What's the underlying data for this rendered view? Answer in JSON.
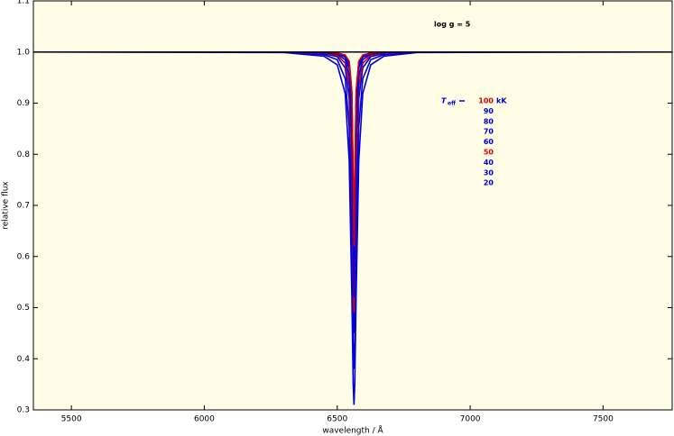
{
  "chart_data": {
    "type": "line",
    "annotation": "log g = 5",
    "legend_title": "T",
    "legend_title_sub": "eff",
    "legend_unit": "kK",
    "x_label": "wavelength / Å",
    "y_label": "relative flux",
    "x": [
      5357,
      6300,
      6450,
      6500,
      6530,
      6545,
      6555,
      6560,
      6563,
      6566,
      6571,
      6581,
      6596,
      6626,
      6676,
      6800,
      7760
    ],
    "series": [
      {
        "name": "100",
        "color": "#dd0000",
        "values": [
          1,
          1,
          1,
          0.998,
          0.994,
          0.982,
          0.924,
          0.757,
          0.62,
          0.757,
          0.924,
          0.982,
          0.994,
          0.998,
          1,
          1,
          1
        ]
      },
      {
        "name": "90",
        "color": "#0000dd",
        "values": [
          1,
          1,
          1,
          0.998,
          0.994,
          0.981,
          0.92,
          0.744,
          0.6,
          0.744,
          0.92,
          0.981,
          0.994,
          0.998,
          1,
          1,
          1
        ]
      },
      {
        "name": "80",
        "color": "#0000dd",
        "values": [
          1,
          1,
          1,
          0.998,
          0.992,
          0.975,
          0.899,
          0.709,
          0.58,
          0.709,
          0.899,
          0.975,
          0.992,
          0.998,
          1,
          1,
          1
        ]
      },
      {
        "name": "70",
        "color": "#0000dd",
        "values": [
          1,
          1,
          0.999,
          0.997,
          0.99,
          0.968,
          0.874,
          0.669,
          0.55,
          0.669,
          0.874,
          0.968,
          0.99,
          0.997,
          0.999,
          1,
          1
        ]
      },
      {
        "name": "60",
        "color": "#0000dd",
        "values": [
          1,
          1,
          0.999,
          0.996,
          0.985,
          0.952,
          0.827,
          0.616,
          0.52,
          0.616,
          0.827,
          0.952,
          0.985,
          0.996,
          0.999,
          1,
          1
        ]
      },
      {
        "name": "50",
        "color": "#dd0000",
        "values": [
          1,
          1,
          0.998,
          0.994,
          0.978,
          0.933,
          0.779,
          0.569,
          0.49,
          0.569,
          0.779,
          0.933,
          0.978,
          0.994,
          0.998,
          1,
          1
        ]
      },
      {
        "name": "40",
        "color": "#0000dd",
        "values": [
          1,
          1,
          0.997,
          0.991,
          0.969,
          0.909,
          0.725,
          0.518,
          0.45,
          0.518,
          0.725,
          0.909,
          0.969,
          0.991,
          0.997,
          1,
          1
        ]
      },
      {
        "name": "30",
        "color": "#0000dd",
        "values": [
          1,
          1,
          0.995,
          0.985,
          0.948,
          0.854,
          0.622,
          0.431,
          0.38,
          0.431,
          0.622,
          0.854,
          0.948,
          0.985,
          0.995,
          1,
          1
        ]
      },
      {
        "name": "20",
        "color": "#0000dd",
        "values": [
          1,
          0.999,
          0.992,
          0.975,
          0.919,
          0.788,
          0.522,
          0.351,
          0.31,
          0.351,
          0.522,
          0.788,
          0.919,
          0.975,
          0.992,
          0.999,
          1
        ]
      }
    ],
    "reference_line": 1,
    "xlim": [
      5357,
      7760
    ],
    "xticks": [
      5500,
      6000,
      6500,
      7000,
      7500
    ],
    "ylim": [
      0.3,
      1.1
    ],
    "yticks": [
      0.3,
      0.4,
      0.5,
      0.6,
      0.7,
      0.8,
      0.9,
      {
        "value": 1,
        "label": "1.0"
      },
      1.1
    ],
    "background": "#fffde6"
  }
}
